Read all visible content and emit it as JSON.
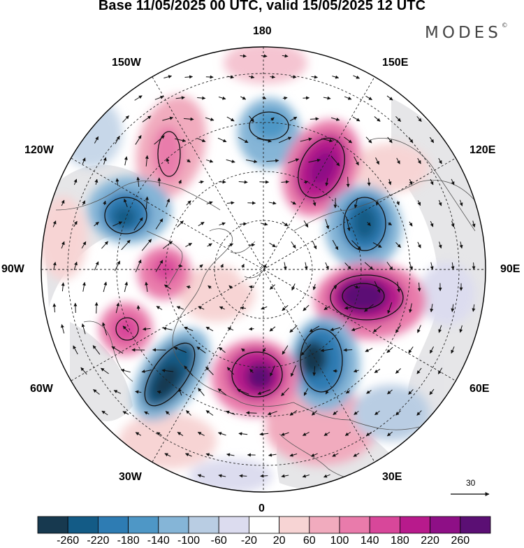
{
  "title": "Base 11/05/2025 00 UTC, valid 15/05/2025 12 UTC",
  "brand": "MODES",
  "brand_mark": "©",
  "longitude_labels": {
    "top": "180",
    "bottom": "0",
    "left": "90W",
    "right": "90E",
    "upper_left_1": "150W",
    "upper_left_2": "120W",
    "upper_right_1": "150E",
    "upper_right_2": "120E",
    "lower_left_1": "60W",
    "lower_left_2": "30W",
    "lower_right_1": "60E",
    "lower_right_2": "30E"
  },
  "vector_reference": "30",
  "colorbar": {
    "ticks": [
      "-260",
      "-220",
      "-180",
      "-140",
      "-100",
      "-60",
      "-20",
      "20",
      "60",
      "100",
      "140",
      "180",
      "220",
      "260"
    ],
    "colors": [
      "#17394f",
      "#135b86",
      "#2e7cb3",
      "#4e97c6",
      "#85b5d7",
      "#b9cde3",
      "#dcdcef",
      "#ffffff",
      "#f7d4d4",
      "#f1abbe",
      "#e97bab",
      "#d8479a",
      "#b81a8c",
      "#8e0f86",
      "#5b0f74"
    ]
  },
  "map_colors": {
    "land_gray": "#e9e9e9",
    "coast": "#555555",
    "graticule": "#222222"
  }
}
